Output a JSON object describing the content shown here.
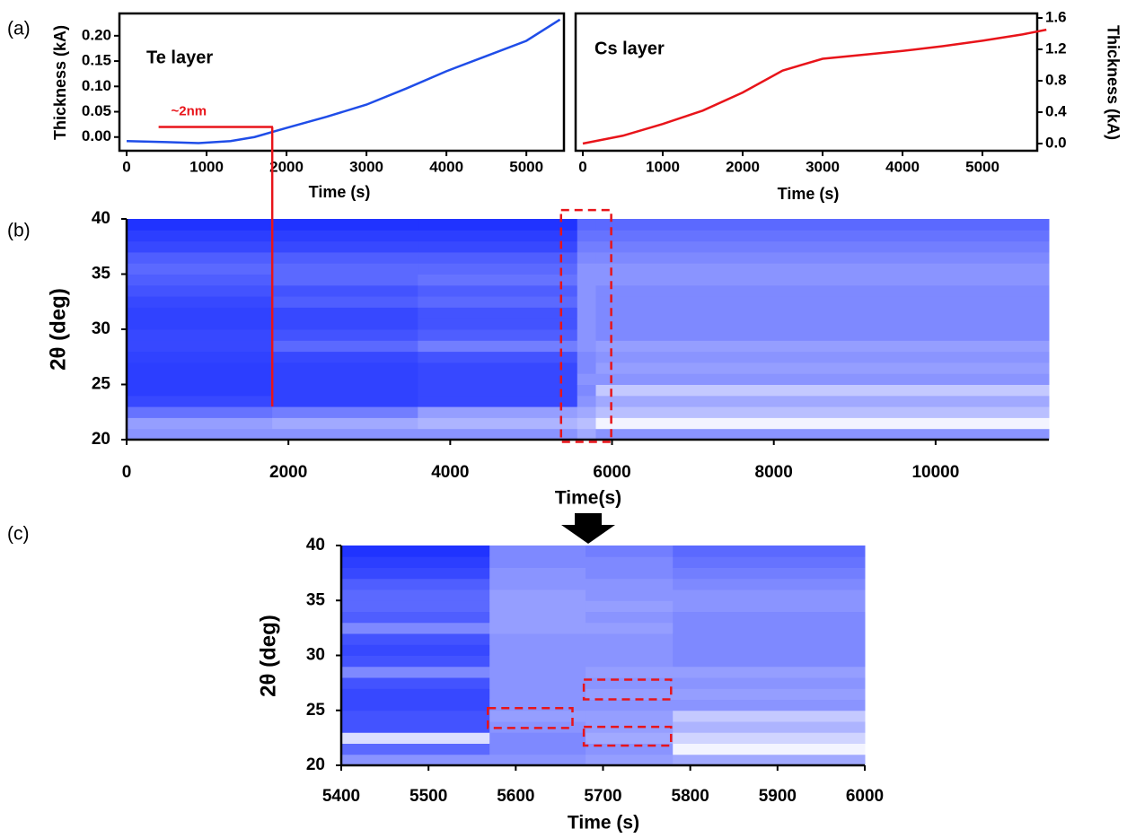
{
  "chart_data": [
    {
      "type": "line",
      "label": "(a)",
      "annotation": "Te layer",
      "xlabel": "Time (s)",
      "ylabel": "Thickness (kA)",
      "color": "#1f4de8",
      "x": [
        0,
        500,
        900,
        1300,
        1600,
        2000,
        2500,
        3000,
        3500,
        4000,
        4500,
        5000,
        5420
      ],
      "values": [
        -0.008,
        -0.01,
        -0.012,
        -0.008,
        0.0,
        0.018,
        0.04,
        0.064,
        0.096,
        0.13,
        0.16,
        0.19,
        0.232
      ],
      "xlim": [
        -90,
        5470
      ],
      "xticks": [
        0,
        1000,
        2000,
        3000,
        4000,
        5000
      ],
      "ylim": [
        -0.027,
        0.244
      ],
      "yticks": [
        {
          "value": 0,
          "label": "0.00"
        },
        {
          "value": 0.05,
          "label": "0.05"
        },
        {
          "value": 0.1,
          "label": "0.10"
        },
        {
          "value": 0.15,
          "label": "0.15"
        },
        {
          "value": 0.2,
          "label": "0.20"
        }
      ],
      "marker": {
        "text": "~2nm",
        "x": [
          400,
          1830
        ],
        "y": 0.02,
        "color": "#e8141a"
      }
    },
    {
      "type": "line",
      "annotation": "Cs layer",
      "xlabel": "Time (s)",
      "ylabel": "Thickness (kA)",
      "color": "#e8141a",
      "axis": "y2",
      "x": [
        0,
        500,
        1000,
        1500,
        2000,
        2500,
        3000,
        3500,
        4000,
        4500,
        5000,
        5500,
        5800
      ],
      "values": [
        0,
        0.1,
        0.25,
        0.42,
        0.65,
        0.93,
        1.08,
        1.13,
        1.18,
        1.24,
        1.31,
        1.39,
        1.45
      ],
      "xlim": [
        -90,
        5685
      ],
      "xticks": [
        0,
        1000,
        2000,
        3000,
        4000,
        5000
      ],
      "y2lim": [
        -0.091,
        1.657
      ],
      "y2ticks": [
        {
          "value": 0,
          "label": "0.0"
        },
        0.4,
        0.8,
        1.2,
        1.6
      ]
    },
    {
      "type": "heatmap",
      "label": "(b)",
      "xlabel": "Time(s)",
      "ylabel": "2θ (deg)",
      "xlim": [
        0,
        11400
      ],
      "xticks": [
        0,
        2000,
        4000,
        6000,
        8000,
        10000
      ],
      "ylim": [
        20,
        40
      ],
      "yticks": [
        20,
        25,
        30,
        35,
        40
      ],
      "zlim": [
        0,
        1
      ],
      "colors": [
        "#1428ff",
        "#ffffff"
      ],
      "x_edges": [
        0,
        1800,
        3600,
        5570,
        5800,
        11400
      ],
      "y_edges": [
        20,
        21,
        22,
        23,
        24,
        25,
        26,
        27,
        28,
        29,
        30,
        31,
        32,
        33,
        34,
        35,
        36,
        37,
        38,
        39,
        40
      ],
      "z": [
        [
          0.5,
          0.55,
          0.35,
          0.15,
          0.1,
          0.1,
          0.1,
          0.12,
          0.15,
          0.15,
          0.12,
          0.12,
          0.15,
          0.2,
          0.25,
          0.3,
          0.25,
          0.15,
          0.1,
          0.05
        ],
        [
          0.5,
          0.6,
          0.4,
          0.12,
          0.12,
          0.12,
          0.12,
          0.15,
          0.3,
          0.2,
          0.15,
          0.15,
          0.25,
          0.2,
          0.3,
          0.3,
          0.25,
          0.15,
          0.1,
          0.05
        ],
        [
          0.5,
          0.65,
          0.55,
          0.15,
          0.15,
          0.15,
          0.15,
          0.2,
          0.4,
          0.25,
          0.2,
          0.2,
          0.3,
          0.25,
          0.35,
          0.3,
          0.25,
          0.15,
          0.1,
          0.05
        ],
        [
          0.6,
          0.7,
          0.6,
          0.5,
          0.45,
          0.5,
          0.45,
          0.45,
          0.5,
          0.5,
          0.5,
          0.5,
          0.5,
          0.5,
          0.5,
          0.5,
          0.45,
          0.4,
          0.35,
          0.3
        ],
        [
          0.5,
          0.95,
          0.7,
          0.6,
          0.75,
          0.5,
          0.55,
          0.5,
          0.55,
          0.45,
          0.45,
          0.45,
          0.45,
          0.45,
          0.5,
          0.5,
          0.45,
          0.4,
          0.35,
          0.3
        ]
      ],
      "highlights": [
        {
          "x": [
            5370,
            5990
          ],
          "y": [
            19.8,
            40.8
          ]
        }
      ],
      "highlight_color": "#e8141a",
      "marker_line": {
        "x": 1800,
        "y": 23
      }
    },
    {
      "type": "heatmap",
      "label": "(c)",
      "xlabel": "Time (s)",
      "ylabel": "2θ (deg)",
      "xlim": [
        5400,
        6000
      ],
      "xticks": [
        5400,
        5500,
        5600,
        5700,
        5800,
        5900,
        6000
      ],
      "ylim": [
        20,
        40
      ],
      "yticks": [
        20,
        25,
        30,
        35,
        40
      ],
      "zlim": [
        0,
        1
      ],
      "colors": [
        "#1428ff",
        "#ffffff"
      ],
      "x_edges": [
        5400,
        5570,
        5680,
        5780,
        6000
      ],
      "y_edges": [
        20,
        21,
        22,
        23,
        24,
        25,
        26,
        27,
        28,
        29,
        30,
        31,
        32,
        33,
        34,
        35,
        36,
        37,
        38,
        39,
        40
      ],
      "z": [
        [
          0.5,
          0.3,
          0.85,
          0.2,
          0.2,
          0.15,
          0.15,
          0.2,
          0.45,
          0.2,
          0.15,
          0.2,
          0.45,
          0.25,
          0.3,
          0.3,
          0.25,
          0.15,
          0.1,
          0.05
        ],
        [
          0.5,
          0.45,
          0.45,
          0.5,
          0.55,
          0.5,
          0.5,
          0.5,
          0.5,
          0.5,
          0.5,
          0.5,
          0.55,
          0.55,
          0.55,
          0.55,
          0.5,
          0.5,
          0.45,
          0.45
        ],
        [
          0.55,
          0.5,
          0.6,
          0.55,
          0.55,
          0.5,
          0.55,
          0.5,
          0.55,
          0.5,
          0.5,
          0.5,
          0.55,
          0.5,
          0.55,
          0.5,
          0.5,
          0.45,
          0.45,
          0.4
        ],
        [
          0.6,
          0.95,
          0.8,
          0.65,
          0.75,
          0.5,
          0.55,
          0.5,
          0.55,
          0.45,
          0.45,
          0.45,
          0.45,
          0.45,
          0.5,
          0.5,
          0.45,
          0.4,
          0.35,
          0.3
        ]
      ],
      "highlights": [
        {
          "x": [
            5568,
            5665
          ],
          "y": [
            23.4,
            25.2
          ]
        },
        {
          "x": [
            5678,
            5778
          ],
          "y": [
            26,
            27.8
          ]
        },
        {
          "x": [
            5678,
            5778
          ],
          "y": [
            21.8,
            23.5
          ]
        }
      ],
      "highlight_color": "#e8141a"
    }
  ]
}
